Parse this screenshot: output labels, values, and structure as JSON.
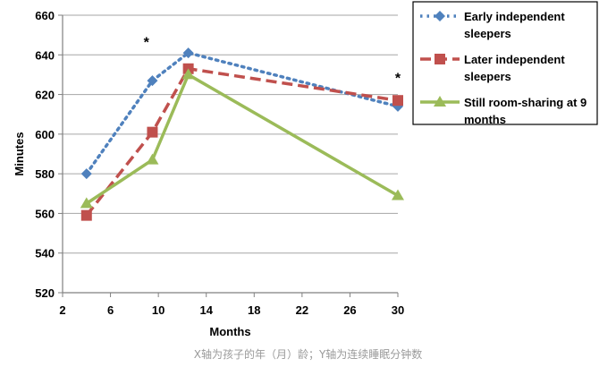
{
  "chart_data": {
    "type": "line",
    "title": "",
    "xlabel": "Months",
    "ylabel": "Minutes",
    "xlim": [
      2,
      30
    ],
    "ylim": [
      520,
      660
    ],
    "x_ticks": [
      2,
      6,
      10,
      14,
      18,
      22,
      26,
      30
    ],
    "y_ticks": [
      520,
      540,
      560,
      580,
      600,
      620,
      640,
      660
    ],
    "grid": "horizontal",
    "legend_position": "top-right",
    "series": [
      {
        "name": "Early independent sleepers",
        "legend_lines": [
          "Early independent",
          "sleepers"
        ],
        "color": "#4f81bd",
        "line_style": "dotted",
        "marker": "diamond",
        "x": [
          4,
          9.5,
          12.5,
          30
        ],
        "values": [
          580,
          627,
          641,
          614
        ]
      },
      {
        "name": "Later independent sleepers",
        "legend_lines": [
          "Later independent",
          "sleepers"
        ],
        "color": "#c0504d",
        "line_style": "dashed",
        "marker": "square",
        "x": [
          4,
          9.5,
          12.5,
          30
        ],
        "values": [
          559,
          601,
          633,
          617
        ]
      },
      {
        "name": "Still room-sharing at 9 months",
        "legend_lines": [
          "Still room-sharing at 9",
          "months"
        ],
        "color": "#9bbb59",
        "line_style": "solid",
        "marker": "triangle",
        "x": [
          4,
          9.5,
          12.5,
          30
        ],
        "values": [
          565,
          587,
          630,
          569
        ]
      }
    ],
    "annotations": [
      {
        "text": "*",
        "x": 9,
        "y": 644
      },
      {
        "text": "*",
        "x": 30,
        "y": 626
      }
    ]
  },
  "caption": "X轴为孩子的年（月）龄；Y轴为连续睡眠分钟数"
}
